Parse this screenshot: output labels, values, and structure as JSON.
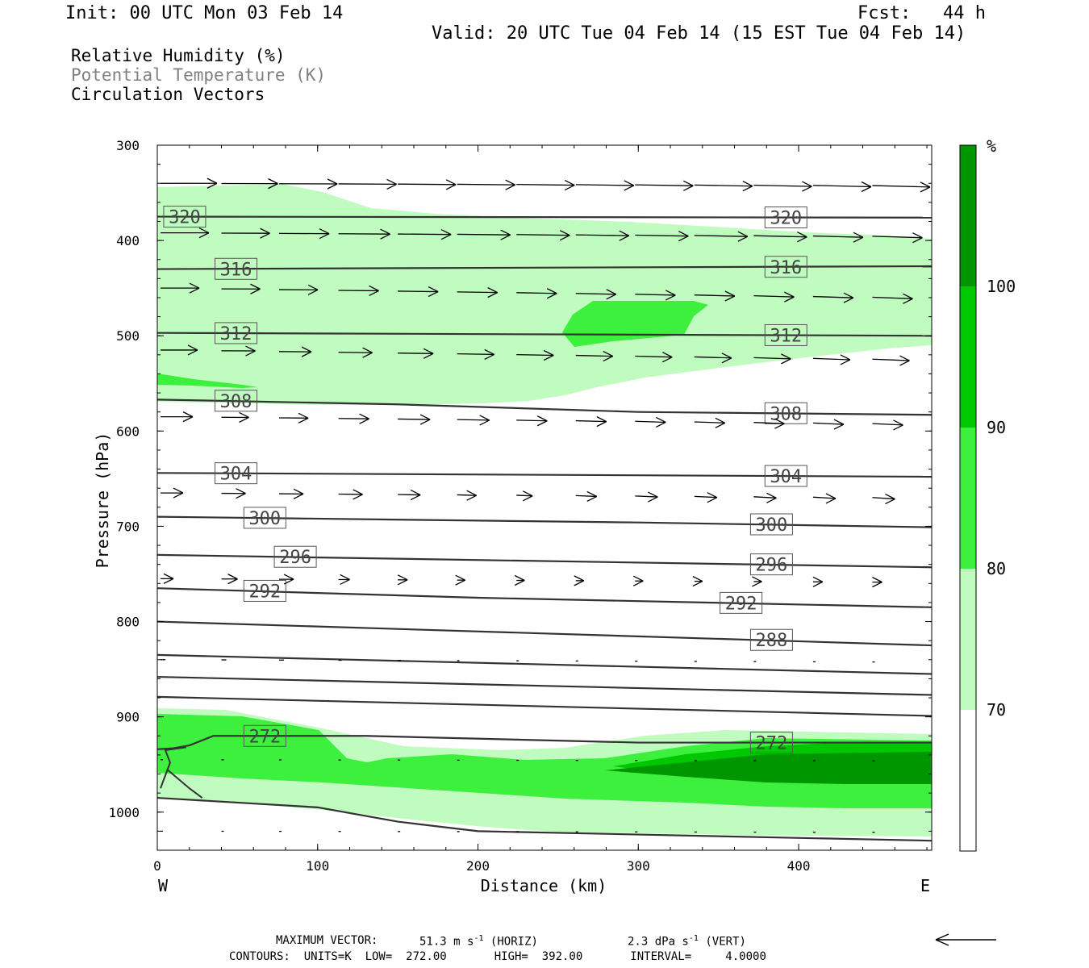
{
  "header": {
    "init": "Init: 00 UTC Mon 03 Feb 14",
    "fcst": "Fcst:   44 h",
    "valid": "Valid: 20 UTC Tue 04 Feb 14 (15 EST Tue 04 Feb 14)"
  },
  "fields": [
    "Relative Humidity (%)",
    "Potential Temperature (K)",
    "Circulation Vectors"
  ],
  "footer": {
    "max_vector_label": "MAXIMUM VECTOR:",
    "max_horiz": "51.3 m s",
    "horiz_tag": "(HORIZ)",
    "max_vert": "2.3 dPa s",
    "vert_tag": "(VERT)",
    "exp": "-1",
    "contours": "CONTOURS:  UNITS=K  LOW=  272.00       HIGH=  392.00       INTERVAL=     4.0000"
  },
  "colors": {
    "rh70": "#c0fbc0",
    "rh80": "#3ef03e",
    "rh90": "#00c800",
    "rh100": "#009600",
    "contour": "#333333"
  },
  "chart_data": {
    "type": "cross-section",
    "xlabel": "Distance (km)",
    "ylabel": "Pressure (hPa)",
    "x_ticks": [
      0,
      100,
      200,
      300,
      400
    ],
    "y_ticks": [
      300,
      400,
      500,
      600,
      700,
      800,
      900,
      1000
    ],
    "xlim": [
      0,
      483
    ],
    "ylim": [
      300,
      1040
    ],
    "left_end": "W",
    "right_end": "E",
    "colorbar": {
      "unit": "%",
      "levels": [
        70,
        80,
        90,
        100
      ]
    },
    "theta_contours": [
      {
        "label": "320",
        "points": [
          [
            0,
            375
          ],
          [
            483,
            376
          ]
        ]
      },
      {
        "label": "316",
        "points": [
          [
            0,
            430
          ],
          [
            483,
            427
          ]
        ]
      },
      {
        "label": "312",
        "points": [
          [
            0,
            497
          ],
          [
            483,
            500
          ]
        ]
      },
      {
        "label": "308",
        "points": [
          [
            0,
            567
          ],
          [
            150,
            572
          ],
          [
            300,
            580
          ],
          [
            483,
            583
          ]
        ]
      },
      {
        "label": "304",
        "points": [
          [
            0,
            644
          ],
          [
            483,
            648
          ]
        ]
      },
      {
        "label": "300",
        "points": [
          [
            0,
            690
          ],
          [
            300,
            696
          ],
          [
            483,
            701
          ]
        ]
      },
      {
        "label": "296",
        "points": [
          [
            0,
            730
          ],
          [
            483,
            743
          ]
        ]
      },
      {
        "label": "292",
        "points": [
          [
            0,
            765
          ],
          [
            200,
            775
          ],
          [
            483,
            785
          ]
        ]
      },
      {
        "label": "288",
        "points": [
          [
            0,
            800
          ],
          [
            483,
            825
          ]
        ]
      },
      {
        "label": "",
        "points": [
          [
            0,
            835
          ],
          [
            483,
            855
          ]
        ]
      },
      {
        "label": "",
        "points": [
          [
            0,
            858
          ],
          [
            483,
            877
          ]
        ]
      },
      {
        "label": "",
        "points": [
          [
            0,
            879
          ],
          [
            483,
            899
          ]
        ]
      },
      {
        "label": "272",
        "points": [
          [
            0,
            934
          ],
          [
            10,
            933
          ],
          [
            20,
            930
          ],
          [
            35,
            920
          ],
          [
            130,
            920
          ],
          [
            300,
            927
          ],
          [
            483,
            927
          ]
        ]
      },
      {
        "label": "",
        "points": [
          [
            0,
            985
          ],
          [
            100,
            995
          ],
          [
            150,
            1010
          ],
          [
            200,
            1020
          ],
          [
            483,
            1030
          ]
        ]
      }
    ]
  }
}
